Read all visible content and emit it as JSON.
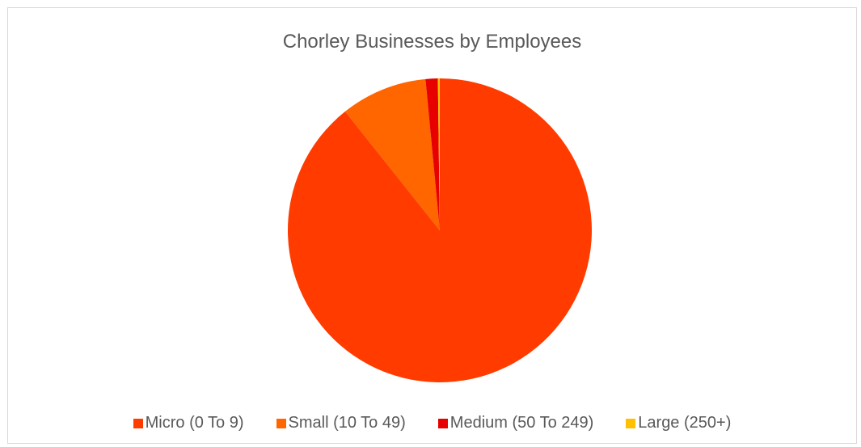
{
  "chart_data": {
    "type": "pie",
    "title": "Chorley Businesses by Employees",
    "categories": [
      "Micro (0 To 9)",
      "Small (10 To 49)",
      "Medium (50 To 249)",
      "Large (250+)"
    ],
    "values": [
      89.3,
      9.2,
      1.3,
      0.2
    ],
    "colors": [
      "#ff3b00",
      "#ff6600",
      "#e80000",
      "#ffc000"
    ],
    "legend_position": "bottom"
  }
}
